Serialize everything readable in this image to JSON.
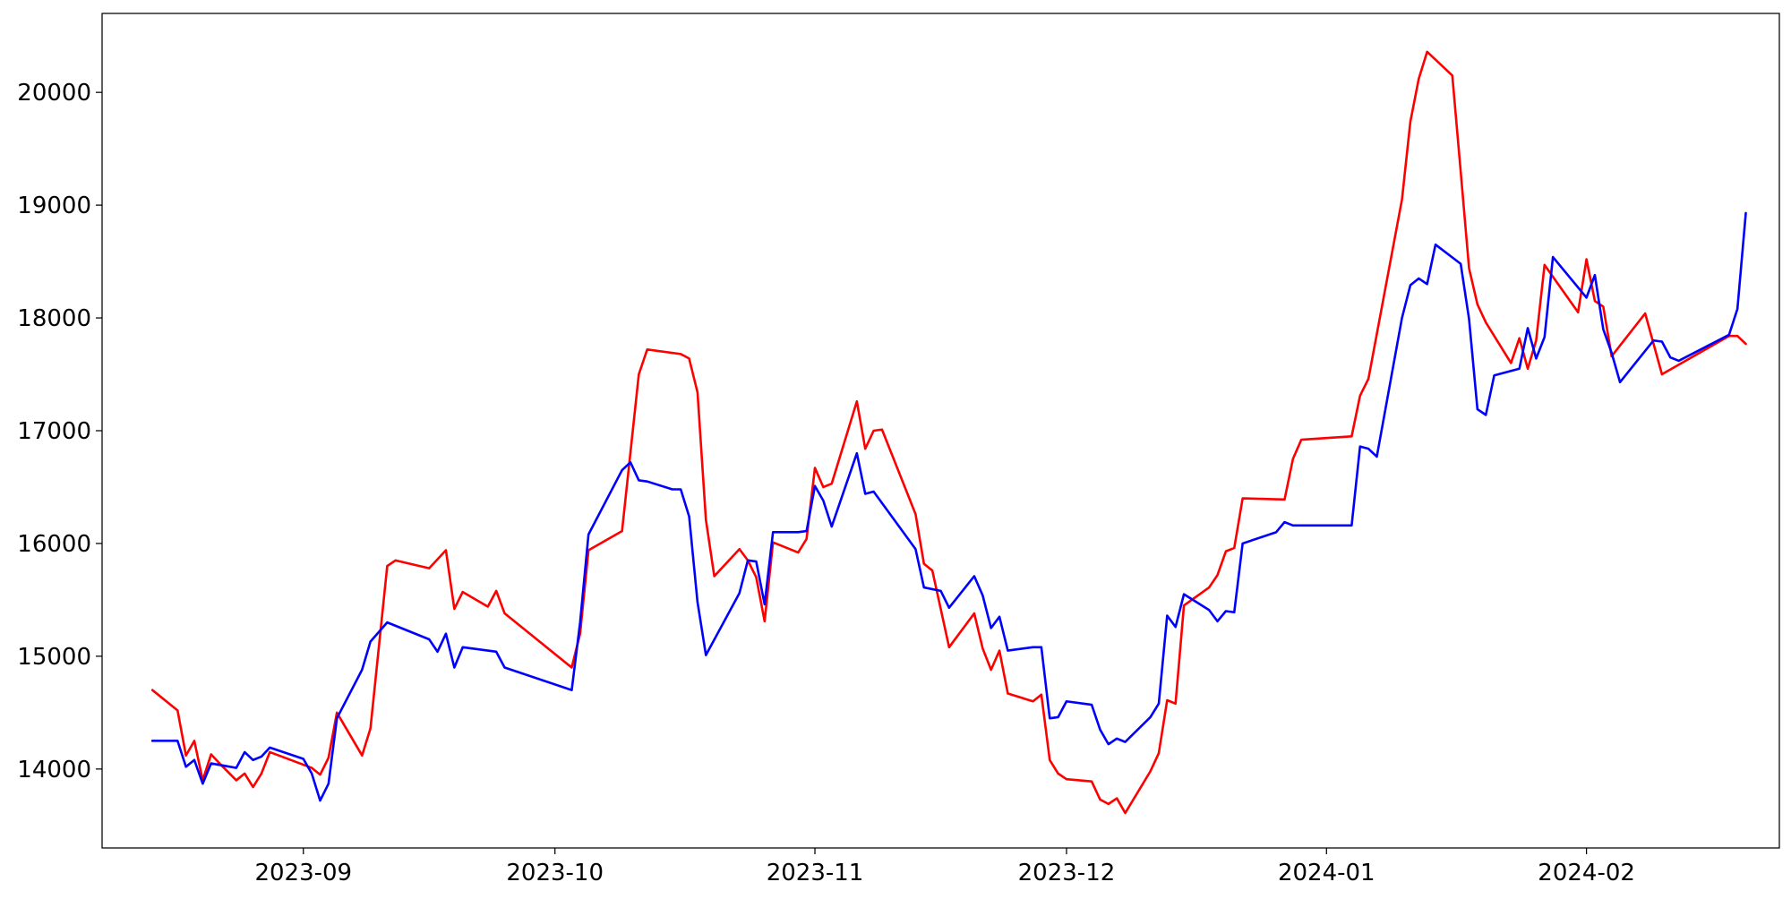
{
  "chart_data": {
    "type": "line",
    "title": "",
    "xlabel": "",
    "ylabel": "",
    "xlim": [
      "2023-08-08",
      "2024-02-24"
    ],
    "ylim": [
      13300,
      20700
    ],
    "grid": false,
    "legend": "none",
    "x_ticks": [
      "2023-09",
      "2023-10",
      "2023-11",
      "2023-12",
      "2024-01",
      "2024-02"
    ],
    "y_ticks": [
      14000,
      15000,
      16000,
      17000,
      18000,
      19000,
      20000
    ],
    "series": [
      {
        "color": "#ff0000",
        "points": [
          [
            "2023-08-14",
            14700
          ],
          [
            "2023-08-17",
            14520
          ],
          [
            "2023-08-18",
            14120
          ],
          [
            "2023-08-19",
            14250
          ],
          [
            "2023-08-20",
            13900
          ],
          [
            "2023-08-21",
            14130
          ],
          [
            "2023-08-22",
            14050
          ],
          [
            "2023-08-24",
            13900
          ],
          [
            "2023-08-25",
            13960
          ],
          [
            "2023-08-26",
            13840
          ],
          [
            "2023-08-27",
            13960
          ],
          [
            "2023-08-28",
            14150
          ],
          [
            "2023-09-02",
            14010
          ],
          [
            "2023-09-03",
            13950
          ],
          [
            "2023-09-04",
            14100
          ],
          [
            "2023-09-05",
            14500
          ],
          [
            "2023-09-08",
            14120
          ],
          [
            "2023-09-09",
            14360
          ],
          [
            "2023-09-11",
            15800
          ],
          [
            "2023-09-12",
            15850
          ],
          [
            "2023-09-16",
            15780
          ],
          [
            "2023-09-18",
            15940
          ],
          [
            "2023-09-19",
            15420
          ],
          [
            "2023-09-20",
            15570
          ],
          [
            "2023-09-23",
            15440
          ],
          [
            "2023-09-24",
            15580
          ],
          [
            "2023-09-25",
            15380
          ],
          [
            "2023-10-03",
            14900
          ],
          [
            "2023-10-04",
            15200
          ],
          [
            "2023-10-05",
            15940
          ],
          [
            "2023-10-09",
            16110
          ],
          [
            "2023-10-11",
            17500
          ],
          [
            "2023-10-12",
            17720
          ],
          [
            "2023-10-16",
            17680
          ],
          [
            "2023-10-17",
            17640
          ],
          [
            "2023-10-18",
            17340
          ],
          [
            "2023-10-19",
            16210
          ],
          [
            "2023-10-20",
            15710
          ],
          [
            "2023-10-23",
            15950
          ],
          [
            "2023-10-24",
            15850
          ],
          [
            "2023-10-25",
            15700
          ],
          [
            "2023-10-26",
            15310
          ],
          [
            "2023-10-27",
            16010
          ],
          [
            "2023-10-30",
            15920
          ],
          [
            "2023-10-31",
            16040
          ],
          [
            "2023-11-01",
            16670
          ],
          [
            "2023-11-02",
            16500
          ],
          [
            "2023-11-03",
            16530
          ],
          [
            "2023-11-06",
            17260
          ],
          [
            "2023-11-07",
            16840
          ],
          [
            "2023-11-08",
            17000
          ],
          [
            "2023-11-09",
            17010
          ],
          [
            "2023-11-13",
            16260
          ],
          [
            "2023-11-14",
            15820
          ],
          [
            "2023-11-15",
            15760
          ],
          [
            "2023-11-17",
            15080
          ],
          [
            "2023-11-20",
            15380
          ],
          [
            "2023-11-21",
            15070
          ],
          [
            "2023-11-22",
            14880
          ],
          [
            "2023-11-23",
            15050
          ],
          [
            "2023-11-24",
            14670
          ],
          [
            "2023-11-27",
            14600
          ],
          [
            "2023-11-28",
            14660
          ],
          [
            "2023-11-29",
            14080
          ],
          [
            "2023-11-30",
            13960
          ],
          [
            "2023-12-01",
            13910
          ],
          [
            "2023-12-04",
            13890
          ],
          [
            "2023-12-05",
            13730
          ],
          [
            "2023-12-06",
            13690
          ],
          [
            "2023-12-07",
            13740
          ],
          [
            "2023-12-08",
            13610
          ],
          [
            "2023-12-11",
            13980
          ],
          [
            "2023-12-12",
            14140
          ],
          [
            "2023-12-13",
            14610
          ],
          [
            "2023-12-14",
            14580
          ],
          [
            "2023-12-15",
            15450
          ],
          [
            "2023-12-18",
            15610
          ],
          [
            "2023-12-19",
            15720
          ],
          [
            "2023-12-20",
            15930
          ],
          [
            "2023-12-21",
            15960
          ],
          [
            "2023-12-22",
            16400
          ],
          [
            "2023-12-27",
            16390
          ],
          [
            "2023-12-28",
            16750
          ],
          [
            "2023-12-29",
            16920
          ],
          [
            "2024-01-04",
            16950
          ],
          [
            "2024-01-05",
            17310
          ],
          [
            "2024-01-06",
            17460
          ],
          [
            "2024-01-10",
            19050
          ],
          [
            "2024-01-11",
            19740
          ],
          [
            "2024-01-12",
            20120
          ],
          [
            "2024-01-13",
            20360
          ],
          [
            "2024-01-16",
            20150
          ],
          [
            "2024-01-17",
            19300
          ],
          [
            "2024-01-18",
            18440
          ],
          [
            "2024-01-19",
            18120
          ],
          [
            "2024-01-20",
            17960
          ],
          [
            "2024-01-23",
            17600
          ],
          [
            "2024-01-24",
            17820
          ],
          [
            "2024-01-25",
            17550
          ],
          [
            "2024-01-26",
            17800
          ],
          [
            "2024-01-27",
            18470
          ],
          [
            "2024-01-31",
            18050
          ],
          [
            "2024-02-01",
            18520
          ],
          [
            "2024-02-02",
            18150
          ],
          [
            "2024-02-03",
            18100
          ],
          [
            "2024-02-04",
            17660
          ],
          [
            "2024-02-08",
            18040
          ],
          [
            "2024-02-10",
            17500
          ],
          [
            "2024-02-18",
            17840
          ],
          [
            "2024-02-19",
            17840
          ],
          [
            "2024-02-20",
            17770
          ]
        ]
      },
      {
        "color": "#0000ff",
        "points": [
          [
            "2023-08-14",
            14250
          ],
          [
            "2023-08-17",
            14250
          ],
          [
            "2023-08-18",
            14020
          ],
          [
            "2023-08-19",
            14080
          ],
          [
            "2023-08-20",
            13870
          ],
          [
            "2023-08-21",
            14050
          ],
          [
            "2023-08-24",
            14010
          ],
          [
            "2023-08-25",
            14150
          ],
          [
            "2023-08-26",
            14080
          ],
          [
            "2023-08-27",
            14110
          ],
          [
            "2023-08-28",
            14190
          ],
          [
            "2023-09-01",
            14090
          ],
          [
            "2023-09-02",
            13960
          ],
          [
            "2023-09-03",
            13720
          ],
          [
            "2023-09-04",
            13870
          ],
          [
            "2023-09-05",
            14450
          ],
          [
            "2023-09-08",
            14880
          ],
          [
            "2023-09-09",
            15130
          ],
          [
            "2023-09-11",
            15300
          ],
          [
            "2023-09-16",
            15150
          ],
          [
            "2023-09-17",
            15040
          ],
          [
            "2023-09-18",
            15200
          ],
          [
            "2023-09-19",
            14900
          ],
          [
            "2023-09-20",
            15080
          ],
          [
            "2023-09-24",
            15040
          ],
          [
            "2023-09-25",
            14900
          ],
          [
            "2023-10-03",
            14700
          ],
          [
            "2023-10-04",
            15300
          ],
          [
            "2023-10-05",
            16080
          ],
          [
            "2023-10-09",
            16650
          ],
          [
            "2023-10-10",
            16720
          ],
          [
            "2023-10-11",
            16560
          ],
          [
            "2023-10-12",
            16550
          ],
          [
            "2023-10-15",
            16480
          ],
          [
            "2023-10-16",
            16480
          ],
          [
            "2023-10-17",
            16240
          ],
          [
            "2023-10-18",
            15480
          ],
          [
            "2023-10-19",
            15010
          ],
          [
            "2023-10-23",
            15560
          ],
          [
            "2023-10-24",
            15850
          ],
          [
            "2023-10-25",
            15840
          ],
          [
            "2023-10-26",
            15460
          ],
          [
            "2023-10-27",
            16100
          ],
          [
            "2023-10-30",
            16100
          ],
          [
            "2023-10-31",
            16110
          ],
          [
            "2023-11-01",
            16510
          ],
          [
            "2023-11-02",
            16380
          ],
          [
            "2023-11-03",
            16150
          ],
          [
            "2023-11-06",
            16800
          ],
          [
            "2023-11-07",
            16440
          ],
          [
            "2023-11-08",
            16460
          ],
          [
            "2023-11-13",
            15950
          ],
          [
            "2023-11-14",
            15610
          ],
          [
            "2023-11-16",
            15580
          ],
          [
            "2023-11-17",
            15430
          ],
          [
            "2023-11-20",
            15710
          ],
          [
            "2023-11-21",
            15540
          ],
          [
            "2023-11-22",
            15250
          ],
          [
            "2023-11-23",
            15350
          ],
          [
            "2023-11-24",
            15050
          ],
          [
            "2023-11-27",
            15080
          ],
          [
            "2023-11-28",
            15080
          ],
          [
            "2023-11-29",
            14450
          ],
          [
            "2023-11-30",
            14460
          ],
          [
            "2023-12-01",
            14600
          ],
          [
            "2023-12-04",
            14570
          ],
          [
            "2023-12-05",
            14350
          ],
          [
            "2023-12-06",
            14220
          ],
          [
            "2023-12-07",
            14270
          ],
          [
            "2023-12-08",
            14240
          ],
          [
            "2023-12-11",
            14460
          ],
          [
            "2023-12-12",
            14580
          ],
          [
            "2023-12-13",
            15360
          ],
          [
            "2023-12-14",
            15260
          ],
          [
            "2023-12-15",
            15550
          ],
          [
            "2023-12-18",
            15410
          ],
          [
            "2023-12-19",
            15310
          ],
          [
            "2023-12-20",
            15400
          ],
          [
            "2023-12-21",
            15390
          ],
          [
            "2023-12-22",
            16000
          ],
          [
            "2023-12-26",
            16100
          ],
          [
            "2023-12-27",
            16190
          ],
          [
            "2023-12-28",
            16160
          ],
          [
            "2024-01-04",
            16160
          ],
          [
            "2024-01-05",
            16860
          ],
          [
            "2024-01-06",
            16840
          ],
          [
            "2024-01-07",
            16770
          ],
          [
            "2024-01-10",
            18000
          ],
          [
            "2024-01-11",
            18290
          ],
          [
            "2024-01-12",
            18350
          ],
          [
            "2024-01-13",
            18300
          ],
          [
            "2024-01-14",
            18650
          ],
          [
            "2024-01-17",
            18480
          ],
          [
            "2024-01-18",
            17990
          ],
          [
            "2024-01-19",
            17190
          ],
          [
            "2024-01-20",
            17140
          ],
          [
            "2024-01-21",
            17490
          ],
          [
            "2024-01-24",
            17550
          ],
          [
            "2024-01-25",
            17910
          ],
          [
            "2024-01-26",
            17640
          ],
          [
            "2024-01-27",
            17830
          ],
          [
            "2024-01-28",
            18540
          ],
          [
            "2024-02-01",
            18180
          ],
          [
            "2024-02-02",
            18380
          ],
          [
            "2024-02-03",
            17900
          ],
          [
            "2024-02-04",
            17690
          ],
          [
            "2024-02-05",
            17430
          ],
          [
            "2024-02-09",
            17800
          ],
          [
            "2024-02-10",
            17790
          ],
          [
            "2024-02-11",
            17650
          ],
          [
            "2024-02-12",
            17620
          ],
          [
            "2024-02-18",
            17850
          ],
          [
            "2024-02-19",
            18080
          ],
          [
            "2024-02-20",
            18930
          ]
        ]
      }
    ]
  }
}
